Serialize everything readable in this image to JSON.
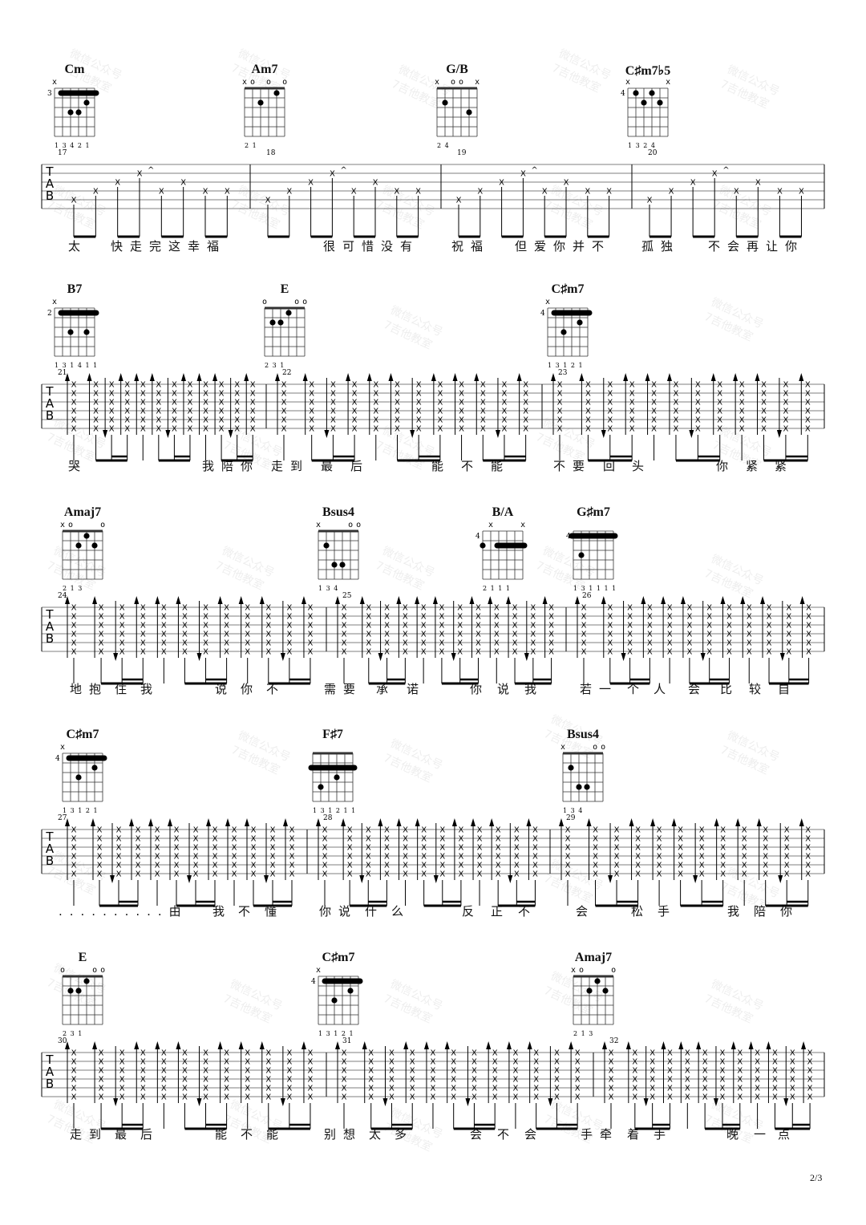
{
  "page_number": "2/3",
  "watermark": {
    "line1": "微信公众号",
    "line2": "7吉他教室"
  },
  "tab_clef": [
    "T",
    "A",
    "B"
  ],
  "systems": [
    {
      "measures": [
        "17",
        "18",
        "19",
        "20"
      ],
      "style": "arpeggio",
      "chords": [
        {
          "name": "Cm",
          "position": "3",
          "markers": "x     ",
          "fingers": "1 3 4 2 1",
          "barre": [
            1,
            5,
            1
          ],
          "dots": [
            [
              2,
              2
            ],
            [
              4,
              3
            ],
            [
              3,
              3
            ]
          ]
        },
        {
          "name": "Am7",
          "position": "",
          "markers": "xo o o",
          "fingers": "2 1",
          "barre": null,
          "dots": [
            [
              4,
              2
            ],
            [
              2,
              1
            ]
          ]
        },
        {
          "name": "G/B",
          "position": "",
          "markers": "x oo x",
          "fingers": "2 4",
          "barre": null,
          "dots": [
            [
              5,
              2
            ],
            [
              2,
              3
            ]
          ]
        },
        {
          "name": "C♯m7♭5",
          "position": "4",
          "markers": "x    x",
          "fingers": "1 3 2 4",
          "barre": null,
          "dots": [
            [
              5,
              1
            ],
            [
              3,
              1
            ],
            [
              4,
              2
            ],
            [
              2,
              2
            ]
          ]
        }
      ],
      "lyrics": [
        "太",
        "快走完这幸福",
        "很可惜没有",
        "祝福",
        "但爱你并不",
        "孤独",
        "不会再让你"
      ]
    },
    {
      "measures": [
        "21",
        "22",
        "23"
      ],
      "style": "strum",
      "chords": [
        {
          "name": "B7",
          "position": "2",
          "markers": "x     ",
          "fingers": "1 3 1 4 1 1",
          "barre": [
            1,
            5,
            1
          ],
          "dots": [
            [
              4,
              3
            ],
            [
              2,
              3
            ]
          ]
        },
        {
          "name": "E",
          "position": "",
          "markers": "o   oo",
          "fingers": "2 3 1",
          "barre": null,
          "dots": [
            [
              5,
              2
            ],
            [
              4,
              2
            ],
            [
              3,
              1
            ]
          ]
        },
        {
          "name": "C♯m7",
          "position": "4",
          "markers": "x     ",
          "fingers": "1 3 1 2 1",
          "barre": [
            1,
            5,
            1
          ],
          "dots": [
            [
              4,
              3
            ],
            [
              2,
              2
            ]
          ]
        }
      ],
      "lyrics": [
        "哭",
        "我陪你",
        "走到",
        "最",
        "后",
        "能",
        "不",
        "能",
        "不要",
        "回",
        "头",
        "你",
        "紧",
        "紧"
      ]
    },
    {
      "measures": [
        "24",
        "25",
        "26"
      ],
      "style": "strum",
      "chords": [
        {
          "name": "Amaj7",
          "position": "",
          "markers": "xo   o",
          "fingers": "2 1 3",
          "barre": null,
          "dots": [
            [
              4,
              2
            ],
            [
              3,
              1
            ],
            [
              2,
              2
            ]
          ]
        },
        {
          "name": "Bsus4",
          "position": "",
          "markers": "x   oo",
          "fingers": "1 3 4",
          "barre": null,
          "dots": [
            [
              5,
              2
            ],
            [
              4,
              4
            ],
            [
              3,
              4
            ]
          ]
        },
        {
          "name": "B/A",
          "position": "4",
          "markers": " x   x",
          "fingers": "2 1 1 1",
          "barre": [
            1,
            4,
            2
          ],
          "dots": [
            [
              6,
              2
            ]
          ]
        },
        {
          "name": "G♯m7",
          "position": "4",
          "markers": "      ",
          "fingers": "1 3 1 1 1 1",
          "barre": [
            1,
            6,
            1
          ],
          "dots": [
            [
              5,
              3
            ]
          ]
        }
      ],
      "lyrics": [
        "地抱",
        "住",
        "我",
        "说",
        "你",
        "不",
        "需要",
        "承",
        "诺",
        "你",
        "说",
        "我",
        "若一",
        "个",
        "人",
        "会",
        "比",
        "较",
        "自"
      ]
    },
    {
      "measures": [
        "27",
        "28",
        "29"
      ],
      "style": "strum",
      "chords": [
        {
          "name": "C♯m7",
          "position": "4",
          "markers": "x     ",
          "fingers": "1 3 1 2 1",
          "barre": [
            1,
            5,
            1
          ],
          "dots": [
            [
              4,
              3
            ],
            [
              2,
              2
            ]
          ]
        },
        {
          "name": "F♯7",
          "position": "",
          "markers": "      ",
          "fingers": "1 3 1 2 1 1",
          "barre": [
            1,
            6,
            2
          ],
          "dots": [
            [
              5,
              4
            ],
            [
              3,
              3
            ]
          ]
        },
        {
          "name": "Bsus4",
          "position": "",
          "markers": "x   oo",
          "fingers": "1 3 4",
          "barre": null,
          "dots": [
            [
              5,
              2
            ],
            [
              4,
              4
            ],
            [
              3,
              4
            ]
          ]
        }
      ],
      "lyrics": [
        "..........由",
        "我",
        "不",
        "懂",
        "你说",
        "什",
        "么",
        "反",
        "正",
        "不",
        "会",
        "松",
        "手",
        "我",
        "陪",
        "你"
      ]
    },
    {
      "measures": [
        "30",
        "31",
        "32"
      ],
      "style": "strum",
      "chords": [
        {
          "name": "E",
          "position": "",
          "markers": "o   oo",
          "fingers": "2 3 1",
          "barre": null,
          "dots": [
            [
              5,
              2
            ],
            [
              4,
              2
            ],
            [
              3,
              1
            ]
          ]
        },
        {
          "name": "C♯m7",
          "position": "4",
          "markers": "x     ",
          "fingers": "1 3 1 2 1",
          "barre": [
            1,
            5,
            1
          ],
          "dots": [
            [
              4,
              3
            ],
            [
              2,
              2
            ]
          ]
        },
        {
          "name": "Amaj7",
          "position": "",
          "markers": "xo   o",
          "fingers": "2 1 3",
          "barre": null,
          "dots": [
            [
              4,
              2
            ],
            [
              3,
              1
            ],
            [
              2,
              2
            ]
          ]
        }
      ],
      "lyrics": [
        "走到",
        "最",
        "后",
        "能",
        "不",
        "能",
        "别想",
        "太",
        "多",
        "会",
        "不",
        "会",
        "手牵",
        "着",
        "手",
        "晚",
        "一",
        "点"
      ]
    }
  ]
}
